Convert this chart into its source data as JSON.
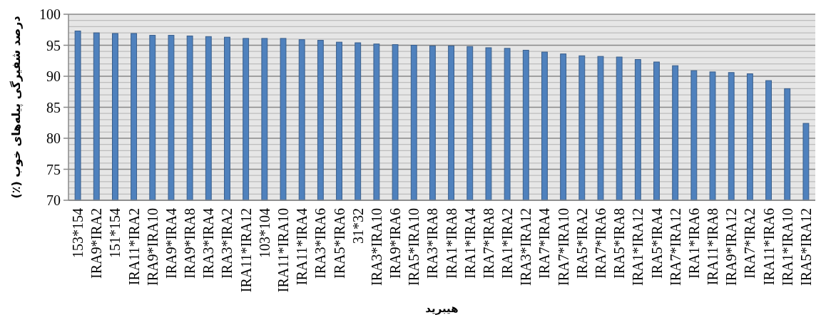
{
  "chart_data": {
    "type": "bar",
    "xlabel": "هیبرید",
    "ylabel": "درصد شفیرگی پیله‌های خوب (٪)",
    "categories": [
      "153*154",
      "IRA9*IRA2",
      "151*154",
      "IRA11*IRA2",
      "IRA9*IRA10",
      "IRA9*IRA4",
      "IRA9*IRA8",
      "IRA3*IRA4",
      "IRA3*IRA2",
      "IRA11*IRA12",
      "103*104",
      "IRA11*IRA10",
      "IRA11*IRA4",
      "IRA3*IRA6",
      "IRA5*IRA6",
      "31*32",
      "IRA3*IRA10",
      "IRA9*IRA6",
      "IRA5*IRA10",
      "IRA3*IRA8",
      "IRA1*IRA8",
      "IRA1*IRA4",
      "IRA7*IRA8",
      "IRA1*IRA2",
      "IRA3*IRA12",
      "IRA7*IRA4",
      "IRA7*IRA10",
      "IRA5*IRA2",
      "IRA7*IRA6",
      "IRA5*IRA8",
      "IRA1*IRA12",
      "IRA5*IRA4",
      "IRA7*IRA12",
      "IRA1*IRA6",
      "IRA11*IRA8",
      "IRA9*IRA12",
      "IRA7*IRA2",
      "IRA11*IRA6",
      "IRA1*IRA10",
      "IRA5*IRA12"
    ],
    "values": [
      97.3,
      97.0,
      96.9,
      96.9,
      96.6,
      96.6,
      96.5,
      96.4,
      96.3,
      96.1,
      96.1,
      96.1,
      95.9,
      95.8,
      95.5,
      95.4,
      95.2,
      95.1,
      95.0,
      94.9,
      94.9,
      94.8,
      94.6,
      94.5,
      94.2,
      93.9,
      93.6,
      93.3,
      93.2,
      93.1,
      92.7,
      92.3,
      91.7,
      90.9,
      90.7,
      90.6,
      90.4,
      89.3,
      88.0,
      82.4
    ],
    "color": "#4f81bd",
    "ylim": [
      70,
      100
    ],
    "yticks": [
      70,
      {
        "value": 71,
        "label": null
      },
      {
        "value": 72,
        "label": null
      },
      {
        "value": 73,
        "label": null
      },
      {
        "value": 74,
        "label": null
      },
      75,
      {
        "value": 76,
        "label": null
      },
      {
        "value": 77,
        "label": null
      },
      {
        "value": 78,
        "label": null
      },
      {
        "value": 79,
        "label": null
      },
      80,
      {
        "value": 81,
        "label": null
      },
      {
        "value": 82,
        "label": null
      },
      {
        "value": 83,
        "label": null
      },
      {
        "value": 84,
        "label": null
      },
      85,
      {
        "value": 86,
        "label": null
      },
      {
        "value": 87,
        "label": null
      },
      {
        "value": 88,
        "label": null
      },
      {
        "value": 89,
        "label": null
      },
      90,
      {
        "value": 91,
        "label": null
      },
      {
        "value": 92,
        "label": null
      },
      {
        "value": 93,
        "label": null
      },
      {
        "value": 94,
        "label": null
      },
      95,
      {
        "value": 96,
        "label": null
      },
      {
        "value": 97,
        "label": null
      },
      {
        "value": 98,
        "label": null
      },
      {
        "value": 99,
        "label": null
      },
      100
    ],
    "grid": "y"
  }
}
